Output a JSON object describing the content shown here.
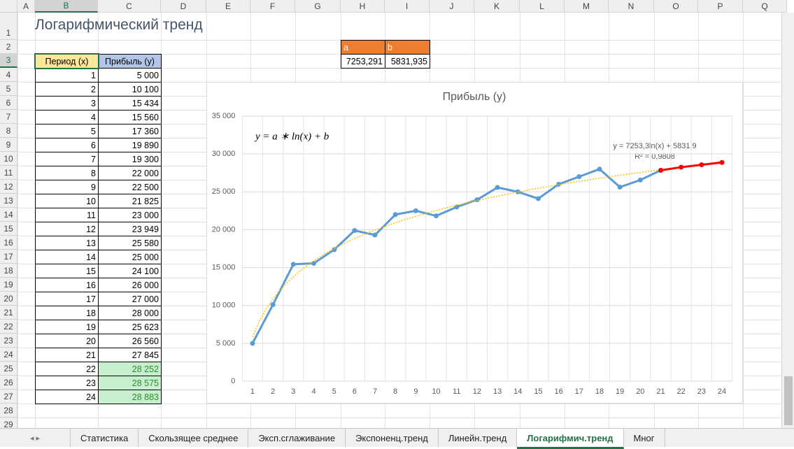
{
  "sheet": {
    "title": "Логарифмический тренд",
    "columns": [
      "A",
      "B",
      "C",
      "D",
      "E",
      "F",
      "G",
      "H",
      "I",
      "J",
      "K",
      "L",
      "M",
      "N",
      "O",
      "P",
      "Q"
    ],
    "rows": [
      1,
      2,
      3,
      4,
      5,
      6,
      7,
      8,
      9,
      10,
      11,
      12,
      13,
      14,
      15,
      16,
      17,
      18,
      19,
      20,
      21,
      22,
      23,
      24,
      25,
      26,
      27,
      28,
      29
    ],
    "selected_column": 1,
    "selected_row": 2
  },
  "table": {
    "header": [
      "Период (x)",
      "Прибыль (y)"
    ],
    "rows": [
      [
        "1",
        "5 000"
      ],
      [
        "2",
        "10 100"
      ],
      [
        "3",
        "15 434"
      ],
      [
        "4",
        "15 560"
      ],
      [
        "5",
        "17 360"
      ],
      [
        "6",
        "19 890"
      ],
      [
        "7",
        "19 300"
      ],
      [
        "8",
        "22 000"
      ],
      [
        "9",
        "22 500"
      ],
      [
        "10",
        "21 825"
      ],
      [
        "11",
        "23 000"
      ],
      [
        "12",
        "23 949"
      ],
      [
        "13",
        "25 580"
      ],
      [
        "14",
        "25 000"
      ],
      [
        "15",
        "24 100"
      ],
      [
        "16",
        "26 000"
      ],
      [
        "17",
        "27 000"
      ],
      [
        "18",
        "28 000"
      ],
      [
        "19",
        "25 623"
      ],
      [
        "20",
        "26 560"
      ],
      [
        "21",
        "27 845"
      ],
      [
        "22",
        "28 252"
      ],
      [
        "23",
        "28 575"
      ],
      [
        "24",
        "28 883"
      ]
    ],
    "highlight_rows": [
      21,
      22,
      23
    ],
    "highlight_color": "#c6efce"
  },
  "params": {
    "header": [
      "a",
      "b"
    ],
    "values": [
      "7253,291",
      "5831,935"
    ],
    "color": "#ed7d31"
  },
  "chart_data": {
    "type": "line",
    "title": "Прибыль (y)",
    "categories": [
      1,
      2,
      3,
      4,
      5,
      6,
      7,
      8,
      9,
      10,
      11,
      12,
      13,
      14,
      15,
      16,
      17,
      18,
      19,
      20,
      21,
      22,
      23,
      24
    ],
    "series": [
      {
        "color": "#5b9bd5",
        "values": [
          5000,
          10100,
          15434,
          15560,
          17360,
          19890,
          19300,
          22000,
          22500,
          21825,
          23000,
          23949,
          25580,
          25000,
          24100,
          26000,
          27000,
          28000,
          25623,
          26560,
          27845,
          null,
          null,
          null
        ]
      },
      {
        "color": "#ff0000",
        "values": [
          null,
          null,
          null,
          null,
          null,
          null,
          null,
          null,
          null,
          null,
          null,
          null,
          null,
          null,
          null,
          null,
          null,
          null,
          null,
          null,
          27845,
          28252,
          28575,
          28883
        ]
      }
    ],
    "trendline": {
      "type": "log",
      "a": 7253.3,
      "b": 5831.9,
      "color": "#ffc000",
      "label": "y = 7253,3ln(x) + 5831,9",
      "r2_label": "R² = 0,9808"
    },
    "annotation": "y = a ∗ ln(x) + b",
    "ylim": [
      0,
      35000
    ],
    "yticks": [
      0,
      {
        "value": 5000,
        "label": "5 000"
      },
      {
        "value": 10000,
        "label": "10 000"
      },
      {
        "value": 15000,
        "label": "15 000"
      },
      {
        "value": 20000,
        "label": "20 000"
      },
      {
        "value": 25000,
        "label": "25 000"
      },
      {
        "value": 30000,
        "label": "30 000"
      },
      {
        "value": 35000,
        "label": "35 000"
      }
    ],
    "grid": true
  },
  "tabs": {
    "items": [
      "Статистика",
      "Скользящее среднее",
      "Эксп.сглаживание",
      "Экспоненц.тренд",
      "Линейн.тренд",
      "Логарифмич.тренд",
      "Мног"
    ],
    "active": 5
  }
}
